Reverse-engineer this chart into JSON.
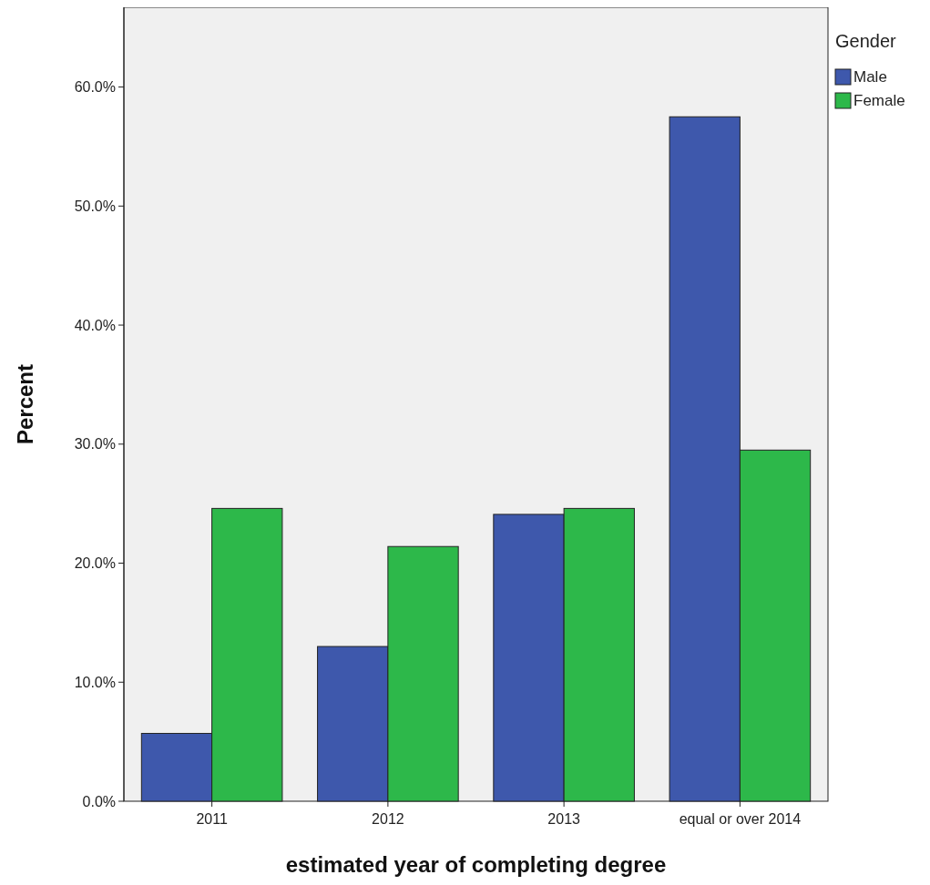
{
  "chart_data": {
    "type": "bar",
    "xlabel": "estimated year of completing degree",
    "ylabel": "Percent",
    "legend_title": "Gender",
    "legend": "top right",
    "categories": [
      "2011",
      "2012",
      "2013",
      "equal or over 2014"
    ],
    "series": [
      {
        "name": "Male",
        "color": "#3e58ac",
        "values": [
          5.7,
          13.0,
          24.1,
          57.5
        ]
      },
      {
        "name": "Female",
        "color": "#2db84a",
        "values": [
          24.6,
          21.4,
          24.6,
          29.5
        ]
      }
    ],
    "ylim": [
      0,
      66.7
    ],
    "yticks": [
      {
        "value": 0,
        "label": "0.0%"
      },
      {
        "value": 10,
        "label": "10.0%"
      },
      {
        "value": 20,
        "label": "20.0%"
      },
      {
        "value": 30,
        "label": "30.0%"
      },
      {
        "value": 40,
        "label": "40.0%"
      },
      {
        "value": 50,
        "label": "50.0%"
      },
      {
        "value": 60,
        "label": "60.0%"
      }
    ]
  }
}
